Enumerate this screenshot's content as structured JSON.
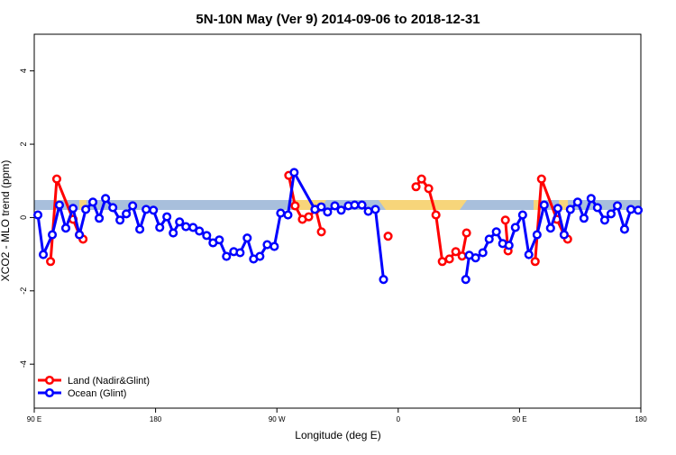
{
  "chart_data": {
    "type": "line",
    "title": "5N-10N May (Ver 9)   2014-09-06 to 2018-12-31",
    "x_label": "Longitude (deg E)",
    "y_label": "XCO2 - MLO trend (ppm)",
    "xlim": [
      90,
      540
    ],
    "ylim": [
      -5.2,
      5
    ],
    "xticks": [
      {
        "value": 90,
        "label": "90 E"
      },
      180,
      {
        "value": 270,
        "label": "90 W"
      },
      {
        "value": 360,
        "label": "0"
      },
      {
        "value": 450,
        "label": "90 E"
      },
      {
        "value": 540,
        "label": "180"
      }
    ],
    "yticks": [
      -4,
      -2,
      0,
      2,
      4
    ],
    "grid": false,
    "legend": "bottom-left",
    "series": [
      {
        "name": "Land (Nadir&Glint)",
        "color": "#ff0000",
        "x": [
          102.1,
          106.7,
          118.8,
          123.5,
          126.2,
          null,
          278.8,
          283.5,
          288.9,
          293.6,
          298.9,
          303.0,
          null,
          352.5,
          null,
          373.2,
          377.3,
          382.6,
          388.0,
          392.7,
          398.0,
          402.7,
          407.4,
          410.7,
          null,
          439.5,
          441.5,
          null,
          461.6,
          466.3,
          477.7,
          483.1,
          485.7
        ],
        "values": [
          -1.2,
          1.05,
          -0.05,
          -0.47,
          -0.59,
          null,
          1.15,
          0.32,
          -0.05,
          0.02,
          0.22,
          -0.39,
          null,
          -0.51,
          null,
          0.84,
          1.05,
          0.79,
          0.07,
          -1.2,
          -1.13,
          -0.93,
          -1.05,
          -0.42,
          null,
          -0.07,
          -0.91,
          null,
          -1.2,
          1.05,
          -0.05,
          -0.47,
          -0.59
        ]
      },
      {
        "name": "Ocean (Glint)",
        "color": "#0000ff",
        "x": [
          92.7,
          96.7,
          103.4,
          108.7,
          113.4,
          118.8,
          123.5,
          128.2,
          133.5,
          138.2,
          142.9,
          148.3,
          153.6,
          158.3,
          163.0,
          168.3,
          173.0,
          178.4,
          183.1,
          188.4,
          193.1,
          197.8,
          202.5,
          207.8,
          212.5,
          217.9,
          222.6,
          227.3,
          232.6,
          238.0,
          242.7,
          248.0,
          252.7,
          257.4,
          262.8,
          268.1,
          272.8,
          278.2,
          282.8,
          298.2,
          302.9,
          307.6,
          313.0,
          317.7,
          323.0,
          327.7,
          333.1,
          337.8,
          343.1,
          349.1,
          null,
          410.1,
          412.7,
          417.4,
          422.8,
          427.5,
          432.8,
          437.5,
          442.2,
          446.9,
          452.3,
          456.9,
          463.0,
          468.3,
          473.0,
          478.4,
          483.1,
          487.7,
          493.1,
          497.8,
          503.1,
          507.8,
          513.2,
          517.9,
          522.6,
          527.9,
          532.6,
          538.0
        ],
        "values": [
          0.07,
          -1.01,
          -0.47,
          0.34,
          -0.29,
          0.25,
          -0.47,
          0.22,
          0.42,
          -0.02,
          0.52,
          0.27,
          -0.07,
          0.1,
          0.32,
          -0.32,
          0.22,
          0.2,
          -0.27,
          0.02,
          -0.42,
          -0.12,
          -0.25,
          -0.27,
          -0.37,
          -0.49,
          -0.69,
          -0.61,
          -1.06,
          -0.93,
          -0.96,
          -0.56,
          -1.13,
          -1.06,
          -0.74,
          -0.79,
          0.12,
          0.07,
          1.23,
          0.22,
          0.29,
          0.15,
          0.32,
          0.2,
          0.32,
          0.34,
          0.34,
          0.17,
          0.22,
          -1.69,
          null,
          -1.69,
          -1.03,
          -1.1,
          -0.96,
          -0.59,
          -0.39,
          -0.71,
          -0.76,
          -0.27,
          0.07,
          -1.01,
          -0.47,
          0.34,
          -0.29,
          0.25,
          -0.47,
          0.22,
          0.42,
          -0.02,
          0.52,
          0.27,
          -0.07,
          0.1,
          0.32,
          -0.32,
          0.22,
          0.2
        ]
      }
    ]
  }
}
